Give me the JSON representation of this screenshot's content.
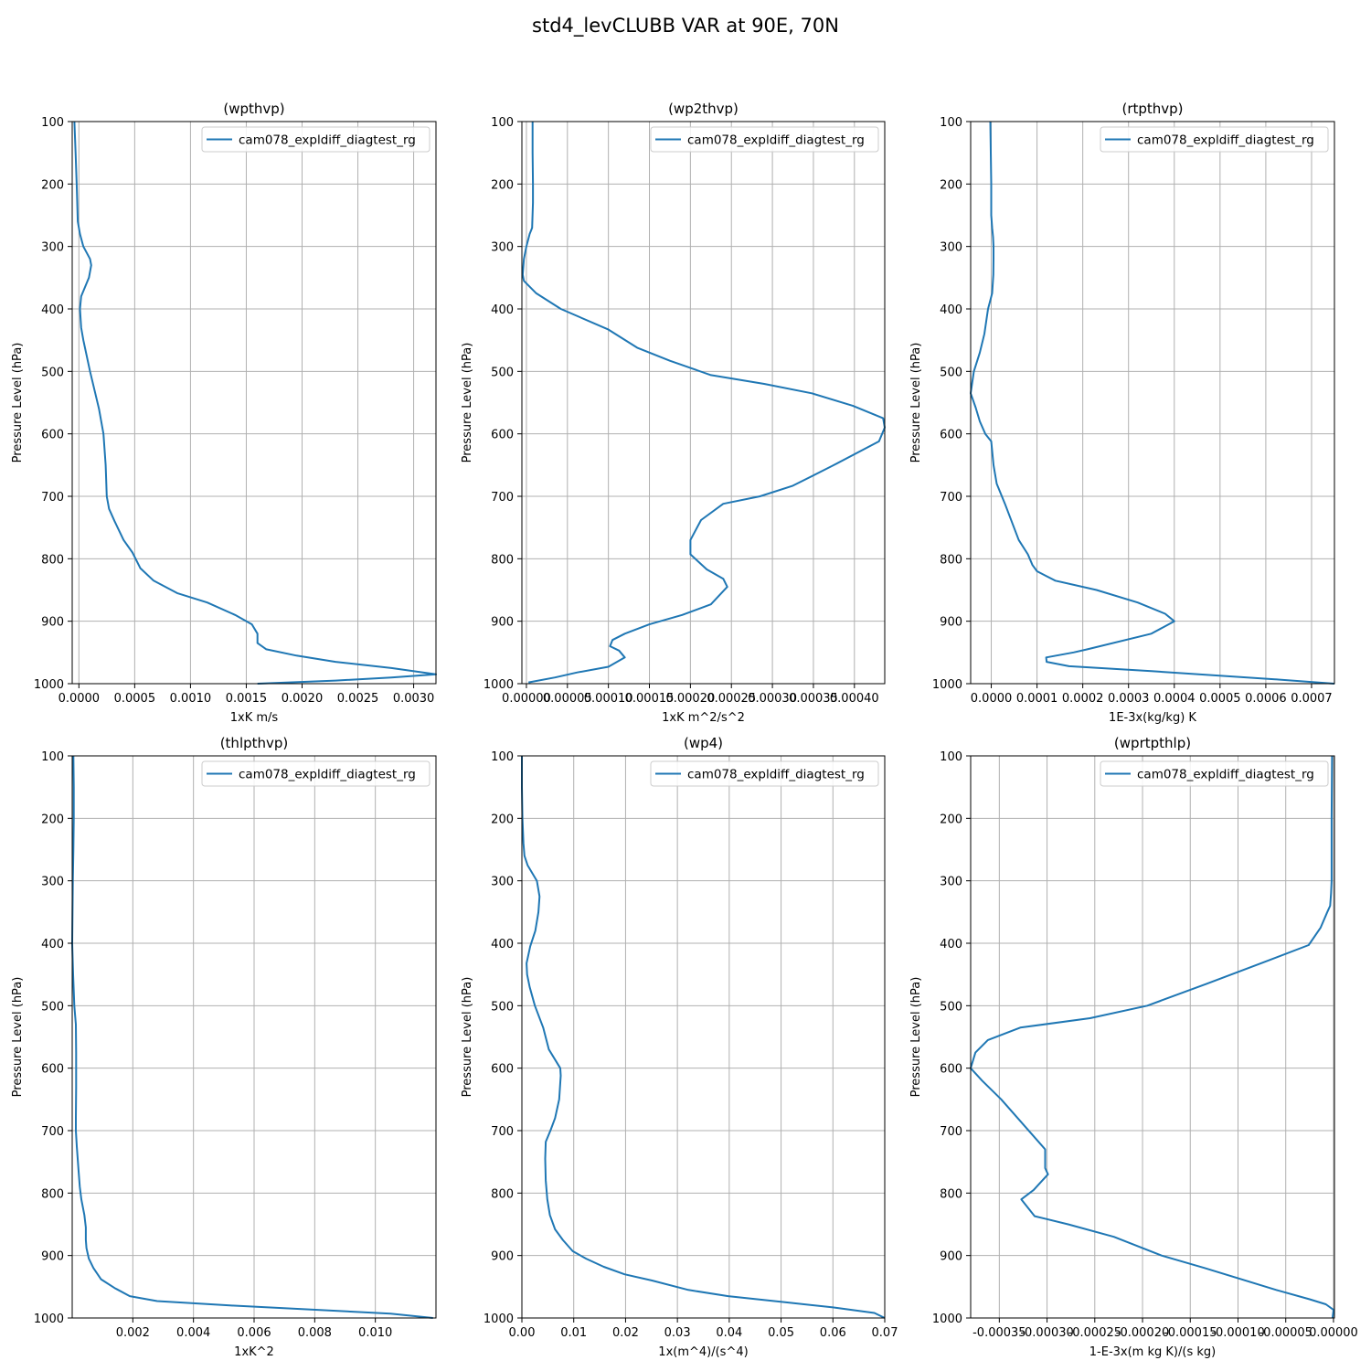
{
  "figure": {
    "title": "std4_levCLUBB VAR at 90E, 70N"
  },
  "colors": {
    "series": "#1f77b4",
    "grid": "#b0b0b0",
    "axis": "#000000"
  },
  "chart_data": [
    {
      "type": "line",
      "title": "(wpthvp)",
      "xlabel": "1xK m/s",
      "ylabel": "Pressure Level (hPa)",
      "legend": "cam078_expldiff_diagtest_rg",
      "legend_position": "top-right",
      "xlim": [
        -6e-05,
        0.0032
      ],
      "xticks": [
        0.0,
        0.0005,
        0.001,
        0.0015,
        0.002,
        0.0025,
        0.003
      ],
      "xtick_labels": [
        "0.0000",
        "0.0005",
        "0.0010",
        "0.0015",
        "0.0020",
        "0.0025",
        "0.0030"
      ],
      "ylim": [
        1000,
        100
      ],
      "yticks": [
        100,
        200,
        300,
        400,
        500,
        600,
        700,
        800,
        900,
        1000
      ],
      "series": [
        {
          "name": "cam078_expldiff_diagtest_rg",
          "x": [
            -4e-05,
            -3e-05,
            -2e-05,
            -1e-05,
            1e-05,
            4e-05,
            0.0001,
            0.00011,
            9e-05,
            2e-05,
            1e-05,
            2e-05,
            4e-05,
            0.0001,
            0.00018,
            0.00022,
            0.00024,
            0.00025,
            0.00027,
            0.00032,
            0.0004,
            0.00048,
            0.00055,
            0.00067,
            0.00088,
            0.00115,
            0.0014,
            0.00155,
            0.0016,
            0.0016,
            0.00168,
            0.00195,
            0.0023,
            0.0028,
            0.0032,
            0.0028,
            0.0023,
            0.0016
          ],
          "y": [
            100,
            150,
            200,
            260,
            280,
            300,
            320,
            330,
            350,
            380,
            400,
            430,
            450,
            500,
            560,
            600,
            650,
            700,
            720,
            740,
            770,
            790,
            815,
            835,
            855,
            870,
            890,
            905,
            920,
            935,
            945,
            955,
            965,
            975,
            985,
            990,
            995,
            1000
          ]
        }
      ]
    },
    {
      "type": "line",
      "title": "(wp2thvp)",
      "xlabel": "1xK m^2/s^2",
      "ylabel": "Pressure Level (hPa)",
      "legend": "cam078_expldiff_diagtest_rg",
      "legend_position": "top-right",
      "xlim": [
        -5.5e-06,
        0.000437
      ],
      "xticks": [
        0.0,
        5e-05,
        0.0001,
        0.00015,
        0.0002,
        0.00025,
        0.0003,
        0.00035,
        0.0004
      ],
      "xtick_labels": [
        "0.00000",
        "0.00005",
        "0.00010",
        "0.00015",
        "0.00020",
        "0.00025",
        "0.00030",
        "0.00035",
        "0.00040"
      ],
      "ylim": [
        1000,
        100
      ],
      "yticks": [
        100,
        200,
        300,
        400,
        500,
        600,
        700,
        800,
        900,
        1000
      ],
      "series": [
        {
          "name": "cam078_expldiff_diagtest_rg",
          "x": [
            7.5e-06,
            7.5e-06,
            8e-06,
            8e-06,
            7e-06,
            4e-06,
            0.0,
            -3e-06,
            -4.5e-06,
            -3e-06,
            1.2e-05,
            4.2e-05,
            0.0001,
            0.000135,
            0.000175,
            0.000225,
            0.00029,
            0.000348,
            0.000398,
            0.000435,
            0.000437,
            0.00043,
            0.000375,
            0.000325,
            0.000285,
            0.00024,
            0.000213,
            0.0002,
            0.0002,
            0.00022,
            0.00024,
            0.000245,
            0.000225,
            0.00019,
            0.00015,
            0.00012,
            0.000105,
            0.000102,
            0.000113,
            0.00012,
            0.0001,
            6.2e-05,
            3.5e-05,
            2.5e-06
          ],
          "y": [
            100,
            150,
            200,
            230,
            270,
            280,
            300,
            320,
            345,
            355,
            375,
            400,
            433,
            462,
            483,
            506,
            520,
            535,
            555,
            575,
            590,
            612,
            650,
            683,
            700,
            712,
            738,
            770,
            793,
            817,
            832,
            845,
            873,
            890,
            905,
            920,
            930,
            940,
            947,
            958,
            973,
            982,
            990,
            998
          ]
        }
      ]
    },
    {
      "type": "line",
      "title": "(rtpthvp)",
      "xlabel": "1E-3x(kg/kg) K",
      "ylabel": "Pressure Level (hPa)",
      "legend": "cam078_expldiff_diagtest_rg",
      "legend_position": "top-right",
      "xlim": [
        -4.5e-05,
        0.00075
      ],
      "xticks": [
        0.0,
        0.0001,
        0.0002,
        0.0003,
        0.0004,
        0.0005,
        0.0006,
        0.0007
      ],
      "xtick_labels": [
        "0.0000",
        "0.0001",
        "0.0002",
        "0.0003",
        "0.0004",
        "0.0005",
        "0.0006",
        "0.0007"
      ],
      "ylim": [
        1000,
        100
      ],
      "yticks": [
        100,
        200,
        300,
        400,
        500,
        600,
        700,
        800,
        900,
        1000
      ],
      "series": [
        {
          "name": "cam078_expldiff_diagtest_rg",
          "x": [
            -2e-06,
            -1e-06,
            0.0,
            0.0,
            2e-06,
            4e-06,
            5e-06,
            5e-06,
            4.5e-06,
            2e-06,
            -7e-06,
            -1.5e-05,
            -2.5e-05,
            -3.8e-05,
            -4.5e-05,
            -3.4e-05,
            -2.5e-05,
            -1.3e-05,
            0.0,
            5e-06,
            1.2e-05,
            3e-05,
            6e-05,
            8e-05,
            9e-05,
            0.0001,
            0.00014,
            0.00023,
            0.00032,
            0.00038,
            0.0004,
            0.00035,
            0.00021,
            0.00018,
            0.00012,
            0.000121,
            0.00017,
            0.00035,
            0.00062,
            0.00075
          ],
          "y": [
            100,
            150,
            200,
            250,
            270,
            285,
            300,
            320,
            345,
            375,
            400,
            440,
            470,
            500,
            535,
            558,
            580,
            600,
            612,
            650,
            680,
            712,
            770,
            793,
            810,
            820,
            835,
            850,
            870,
            888,
            900,
            920,
            945,
            950,
            958,
            965,
            972,
            980,
            993,
            1000
          ]
        }
      ]
    },
    {
      "type": "line",
      "title": "(thlpthvp)",
      "xlabel": "1xK^2",
      "ylabel": "Pressure Level (hPa)",
      "legend": "cam078_expldiff_diagtest_rg",
      "legend_position": "top-right",
      "xlim": [
        0.0,
        0.012
      ],
      "xticks": [
        0.002,
        0.004,
        0.006,
        0.008,
        0.01
      ],
      "xtick_labels": [
        "0.002",
        "0.004",
        "0.006",
        "0.008",
        "0.010"
      ],
      "ylim": [
        1000,
        100
      ],
      "yticks": [
        100,
        200,
        300,
        400,
        500,
        600,
        700,
        800,
        900,
        1000
      ],
      "series": [
        {
          "name": "cam078_expldiff_diagtest_rg",
          "x": [
            4e-05,
            5e-05,
            5e-05,
            4e-05,
            2e-05,
            0.0,
            3e-05,
            7e-05,
            0.00012,
            0.00013,
            0.00013,
            0.00012,
            0.00012,
            0.00015,
            0.00021,
            0.00025,
            0.0003,
            0.0004,
            0.00045,
            0.00045,
            0.00047,
            0.00055,
            0.0007,
            0.00095,
            0.0014,
            0.0019,
            0.0028,
            0.0052,
            0.0105,
            0.0119
          ],
          "y": [
            100,
            150,
            200,
            250,
            300,
            400,
            450,
            500,
            530,
            575,
            630,
            680,
            700,
            725,
            765,
            790,
            810,
            835,
            855,
            875,
            888,
            905,
            920,
            938,
            952,
            965,
            973,
            980,
            993,
            1000
          ]
        }
      ]
    },
    {
      "type": "line",
      "title": "(wp4)",
      "xlabel": "1x(m^4)/(s^4)",
      "ylabel": "Pressure Level (hPa)",
      "legend": "cam078_expldiff_diagtest_rg",
      "legend_position": "top-right",
      "xlim": [
        0.0,
        0.07
      ],
      "xticks": [
        0.0,
        0.01,
        0.02,
        0.03,
        0.04,
        0.05,
        0.06,
        0.07
      ],
      "xtick_labels": [
        "0.00",
        "0.01",
        "0.02",
        "0.03",
        "0.04",
        "0.05",
        "0.06",
        "0.07"
      ],
      "ylim": [
        1000,
        100
      ],
      "yticks": [
        100,
        200,
        300,
        400,
        500,
        600,
        700,
        800,
        900,
        1000
      ],
      "series": [
        {
          "name": "cam078_expldiff_diagtest_rg",
          "x": [
            0.0,
            0.0,
            0.0001,
            0.0003,
            0.0005,
            0.0011,
            0.0029,
            0.0034,
            0.0032,
            0.0026,
            0.0016,
            0.0009,
            0.001,
            0.0015,
            0.0025,
            0.0041,
            0.0052,
            0.0074,
            0.0075,
            0.0072,
            0.0064,
            0.0055,
            0.0046,
            0.0045,
            0.0046,
            0.0049,
            0.0054,
            0.0064,
            0.0079,
            0.0098,
            0.0124,
            0.0158,
            0.0198,
            0.0251,
            0.0321,
            0.0398,
            0.051,
            0.06,
            0.068,
            0.07
          ],
          "y": [
            100,
            150,
            200,
            240,
            260,
            275,
            300,
            325,
            350,
            380,
            405,
            432,
            450,
            470,
            500,
            535,
            570,
            600,
            612,
            650,
            680,
            700,
            718,
            745,
            780,
            810,
            835,
            858,
            875,
            893,
            905,
            918,
            930,
            940,
            955,
            965,
            975,
            983,
            992,
            1000
          ]
        }
      ]
    },
    {
      "type": "line",
      "title": "(wprtpthlp)",
      "xlabel": "1-E-3x(m kg K)/(s kg)",
      "ylabel": "Pressure Level (hPa)",
      "legend": "cam078_expldiff_diagtest_rg",
      "legend_position": "top-right",
      "xlim": [
        -0.00038,
        1e-06
      ],
      "xticks": [
        -0.00035,
        -0.0003,
        -0.00025,
        -0.0002,
        -0.00015,
        -0.0001,
        -5e-05,
        0.0
      ],
      "xtick_labels": [
        "-0.00035",
        "-0.00030",
        "-0.00025",
        "-0.00020",
        "-0.00015",
        "-0.00010",
        "-0.00005",
        "0.00000"
      ],
      "ylim": [
        1000,
        100
      ],
      "yticks": [
        100,
        200,
        300,
        400,
        500,
        600,
        700,
        800,
        900,
        1000
      ],
      "series": [
        {
          "name": "cam078_expldiff_diagtest_rg",
          "x": [
            -1.5e-06,
            -2e-06,
            -2e-06,
            -2.5e-06,
            -3.5e-06,
            -6.5e-06,
            -1.35e-05,
            -2.6e-05,
            -7.6e-05,
            -0.000133,
            -0.000195,
            -0.000255,
            -0.000328,
            -0.000362,
            -0.000375,
            -0.00038,
            -0.000368,
            -0.000348,
            -0.000302,
            -0.000302,
            -0.000299,
            -0.000314,
            -0.000327,
            -0.000313,
            -0.000278,
            -0.00023,
            -0.00018,
            -0.000135,
            -6e-05,
            -2.5e-05,
            -8e-06,
            0.0,
            -1e-06
          ],
          "y": [
            100,
            200,
            300,
            320,
            340,
            350,
            375,
            403,
            432,
            465,
            500,
            520,
            535,
            555,
            575,
            600,
            620,
            650,
            730,
            760,
            770,
            795,
            810,
            837,
            850,
            870,
            900,
            920,
            955,
            970,
            978,
            987,
            1000
          ]
        }
      ]
    }
  ]
}
